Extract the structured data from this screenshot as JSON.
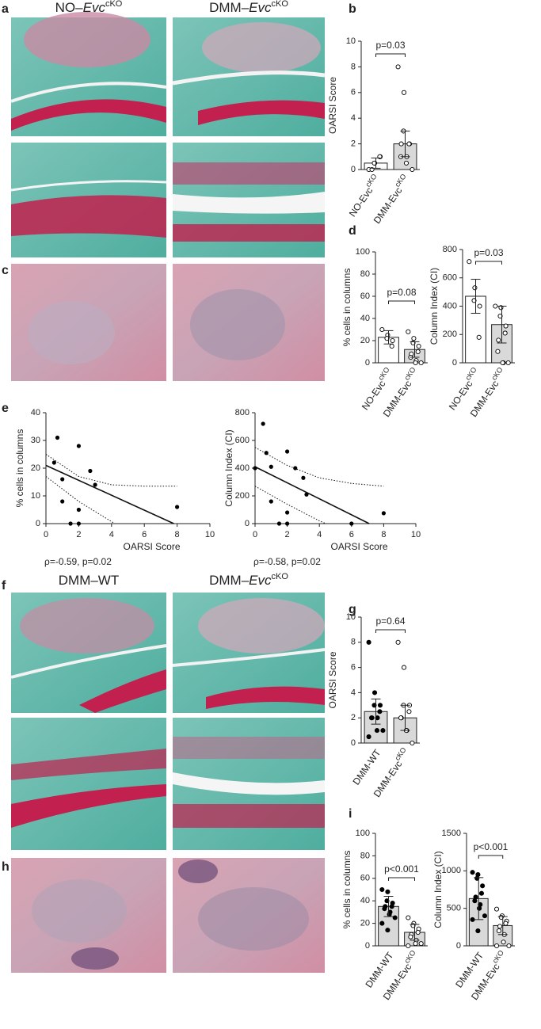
{
  "figure": {
    "panel_labels": [
      "a",
      "b",
      "c",
      "d",
      "e",
      "f",
      "g",
      "h",
      "i"
    ],
    "image_titles": [
      [
        "NO–",
        "Evc",
        "cKO"
      ],
      [
        "DMM–",
        "Evc",
        "cKO"
      ],
      [
        "DMM–WT"
      ],
      [
        "DMM–",
        "Evc",
        "cKO"
      ]
    ]
  },
  "chart_data": [
    {
      "type": "bar",
      "ylabel": "OARSI Score",
      "ylim": [
        0,
        10
      ],
      "yticks": [
        0,
        2,
        4,
        6,
        8,
        10
      ],
      "categories": [
        "NO-Evc",
        "DMM-Evc"
      ],
      "category_superscripts": [
        "cKO",
        "cKO"
      ],
      "values": [
        0.5,
        2.0
      ],
      "errors": [
        0.4,
        1.0
      ],
      "colors": [
        "#ffffff",
        "#d9d9d9"
      ],
      "point_colors": [
        "#ffffff",
        "#ffffff"
      ],
      "points": [
        [
          0,
          0.5,
          0.5,
          1,
          1,
          0
        ],
        [
          8,
          6,
          3,
          2,
          2,
          2,
          1,
          1,
          0.5,
          0
        ]
      ],
      "annotation": "p=0.03"
    },
    {
      "type": "bar",
      "ylabel": "% cells in columns",
      "ylim": [
        0,
        100
      ],
      "yticks": [
        0,
        20,
        40,
        60,
        80,
        100
      ],
      "categories": [
        "NO-Evc",
        "DMM-Evc"
      ],
      "category_superscripts": [
        "cKO",
        "cKO"
      ],
      "values": [
        23,
        12
      ],
      "errors": [
        6,
        7
      ],
      "colors": [
        "#ffffff",
        "#d9d9d9"
      ],
      "point_colors": [
        "#ffffff",
        "#ffffff"
      ],
      "points": [
        [
          30,
          25,
          22,
          20,
          15
        ],
        [
          28,
          22,
          18,
          15,
          10,
          8,
          5,
          2,
          0,
          0
        ]
      ],
      "annotation": "p=0.08"
    },
    {
      "type": "bar",
      "ylabel": "Column Index (CI)",
      "ylim": [
        0,
        800
      ],
      "yticks": [
        0,
        200,
        400,
        600,
        800
      ],
      "categories": [
        "NO-Evc",
        "DMM-Evc"
      ],
      "category_superscripts": [
        "cKO",
        "cKO"
      ],
      "values": [
        470,
        270
      ],
      "errors": [
        120,
        130
      ],
      "colors": [
        "#ffffff",
        "#d9d9d9"
      ],
      "point_colors": [
        "#ffffff",
        "#ffffff"
      ],
      "points": [
        [
          715,
          530,
          440,
          400,
          180
        ],
        [
          400,
          390,
          330,
          260,
          210,
          160,
          80,
          0,
          0,
          0
        ]
      ],
      "annotation": "p=0.03"
    },
    {
      "type": "scatter",
      "ylabel": "% cells in columns",
      "xlabel": "OARSI Score",
      "xlim": [
        0,
        10
      ],
      "xticks": [
        0,
        2,
        4,
        6,
        8,
        10
      ],
      "ylim": [
        0,
        40
      ],
      "yticks": [
        0,
        10,
        20,
        30,
        40
      ],
      "x": [
        0.5,
        0.7,
        1,
        1,
        1.5,
        2,
        2,
        2,
        2.7,
        3,
        8
      ],
      "y": [
        22,
        31,
        16,
        8,
        0,
        28,
        5,
        0,
        19,
        14,
        6
      ],
      "fit": {
        "x": [
          0,
          7.8
        ],
        "y": [
          21,
          0
        ]
      },
      "ci_upper": {
        "x": [
          0,
          2,
          4,
          6,
          8
        ],
        "y": [
          25,
          17,
          14,
          13.5,
          13.5
        ]
      },
      "ci_lower": {
        "x": [
          0,
          2,
          4.2
        ],
        "y": [
          17,
          8,
          0
        ]
      },
      "annotation": "ρ=-0.59, p=0.02"
    },
    {
      "type": "scatter",
      "ylabel": "Column Index (CI)",
      "xlabel": "OARSI Score",
      "xlim": [
        0,
        10
      ],
      "xticks": [
        0,
        2,
        4,
        6,
        8,
        10
      ],
      "ylim": [
        0,
        800
      ],
      "yticks": [
        0,
        200,
        400,
        600,
        800
      ],
      "x": [
        0,
        0.5,
        0.7,
        1,
        1,
        1.5,
        2,
        2,
        2,
        2.5,
        3,
        3.2,
        6,
        8
      ],
      "y": [
        400,
        720,
        510,
        410,
        160,
        0,
        520,
        80,
        0,
        400,
        330,
        210,
        0,
        75
      ],
      "fit": {
        "x": [
          0,
          7.1
        ],
        "y": [
          410,
          0
        ]
      },
      "ci_upper": {
        "x": [
          0,
          2,
          4,
          6,
          8
        ],
        "y": [
          550,
          420,
          330,
          290,
          270
        ]
      },
      "ci_lower": {
        "x": [
          0,
          2,
          4,
          4.4
        ],
        "y": [
          270,
          140,
          20,
          0
        ]
      },
      "annotation": "ρ=-0.58, p=0.02"
    },
    {
      "type": "bar",
      "ylabel": "OARSI Score",
      "ylim": [
        0,
        10
      ],
      "yticks": [
        0,
        2,
        4,
        6,
        8,
        10
      ],
      "categories": [
        "DMM-WT",
        "DMM-Evc"
      ],
      "category_superscripts": [
        null,
        "cKO"
      ],
      "values": [
        2.5,
        2.0
      ],
      "errors": [
        1.0,
        1.0
      ],
      "colors": [
        "#d9d9d9",
        "#d9d9d9"
      ],
      "point_colors": [
        "#000000",
        "#ffffff"
      ],
      "points": [
        [
          8,
          4,
          3,
          3,
          2.5,
          2,
          2,
          2,
          1,
          1,
          0.5
        ],
        [
          8,
          6,
          3,
          3,
          2.5,
          2,
          2,
          1,
          1,
          0
        ]
      ],
      "annotation": "p=0.64"
    },
    {
      "type": "bar",
      "ylabel": "% cells in columns",
      "ylim": [
        0,
        100
      ],
      "yticks": [
        0,
        20,
        40,
        60,
        80,
        100
      ],
      "categories": [
        "DMM-WT",
        "DMM-Evc"
      ],
      "category_superscripts": [
        null,
        "cKO"
      ],
      "values": [
        35,
        12
      ],
      "errors": [
        9,
        7
      ],
      "colors": [
        "#d9d9d9",
        "#d9d9d9"
      ],
      "point_colors": [
        "#000000",
        "#ffffff"
      ],
      "points": [
        [
          50,
          48,
          40,
          38,
          35,
          35,
          33,
          30,
          28,
          25,
          20,
          14
        ],
        [
          25,
          20,
          18,
          15,
          12,
          10,
          8,
          5,
          2,
          2,
          0
        ]
      ],
      "annotation": "p<0.001"
    },
    {
      "type": "bar",
      "ylabel": "Column Index (CI)",
      "ylim": [
        0,
        1500
      ],
      "yticks": [
        0,
        500,
        1000,
        1500
      ],
      "categories": [
        "DMM-WT",
        "DMM-Evc"
      ],
      "category_superscripts": [
        null,
        "cKO"
      ],
      "values": [
        630,
        270
      ],
      "errors": [
        280,
        120
      ],
      "colors": [
        "#d9d9d9",
        "#d9d9d9"
      ],
      "point_colors": [
        "#000000",
        "#ffffff"
      ],
      "points": [
        [
          980,
          950,
          900,
          800,
          700,
          650,
          600,
          550,
          500,
          400,
          350,
          200
        ],
        [
          490,
          400,
          380,
          330,
          300,
          260,
          200,
          150,
          50,
          0,
          0
        ]
      ],
      "annotation": "p<0.001"
    }
  ]
}
